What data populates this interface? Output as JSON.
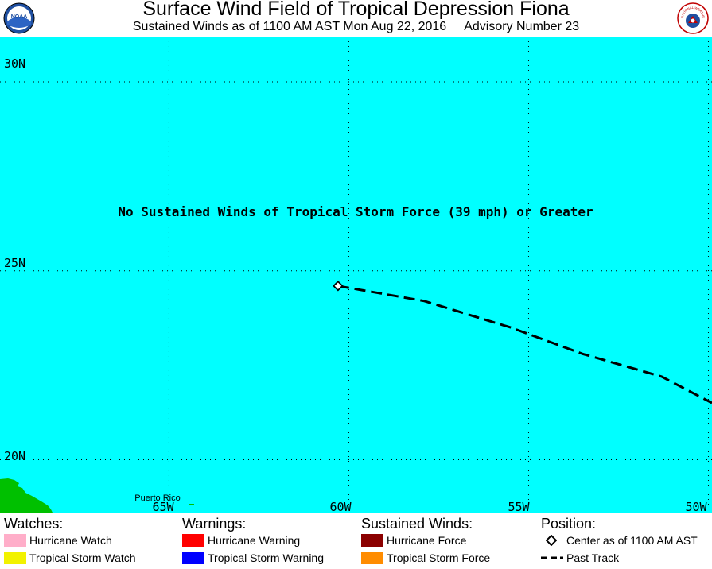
{
  "header": {
    "title": "Surface Wind Field of Tropical Depression Fiona",
    "subtitle_time": "Sustained Winds as of 1100 AM AST Mon Aug 22, 2016",
    "subtitle_advisory": "Advisory Number 23",
    "left_logo_text": "NOAA",
    "right_logo_text": "NATIONAL WEATHER SERVICE"
  },
  "map": {
    "ocean_color": "#00ffff",
    "land_color": "#00c000",
    "notice": "No Sustained Winds of Tropical Storm Force (39 mph) or Greater",
    "place_label": "Puerto Rico",
    "lat_labels": [
      "30N",
      "25N",
      "20N"
    ],
    "lon_labels": [
      "65W",
      "60W",
      "55W",
      "50W"
    ],
    "bounds": {
      "lon_west": 69.7,
      "lon_east": 49.9,
      "lat_north": 31.2,
      "lat_south": 18.6
    },
    "gridlines": {
      "lats": [
        30,
        25,
        20
      ],
      "lons": [
        65,
        60,
        55,
        50
      ]
    },
    "center": {
      "lat": 24.6,
      "lon": 60.3
    },
    "past_track": [
      {
        "lat": 24.6,
        "lon": 60.3
      },
      {
        "lat": 24.2,
        "lon": 57.9
      },
      {
        "lat": 23.5,
        "lon": 55.5
      },
      {
        "lat": 22.8,
        "lon": 53.5
      },
      {
        "lat": 22.2,
        "lon": 51.3
      },
      {
        "lat": 21.5,
        "lon": 49.9
      }
    ]
  },
  "legend": {
    "watches": {
      "heading": "Watches:",
      "items": [
        {
          "label": "Hurricane Watch",
          "color": "#ffaec9"
        },
        {
          "label": "Tropical Storm Watch",
          "color": "#f2f200"
        }
      ]
    },
    "warnings": {
      "heading": "Warnings:",
      "items": [
        {
          "label": "Hurricane Warning",
          "color": "#ff0000"
        },
        {
          "label": "Tropical Storm Warning",
          "color": "#0000ff"
        }
      ]
    },
    "sustained_winds": {
      "heading": "Sustained Winds:",
      "items": [
        {
          "label": "Hurricane Force",
          "color": "#8b0000"
        },
        {
          "label": "Tropical Storm Force",
          "color": "#ff8c00"
        }
      ]
    },
    "position": {
      "heading": "Position:",
      "items": [
        {
          "label": "Center as of 1100 AM AST"
        },
        {
          "label": "Past Track"
        }
      ]
    }
  }
}
